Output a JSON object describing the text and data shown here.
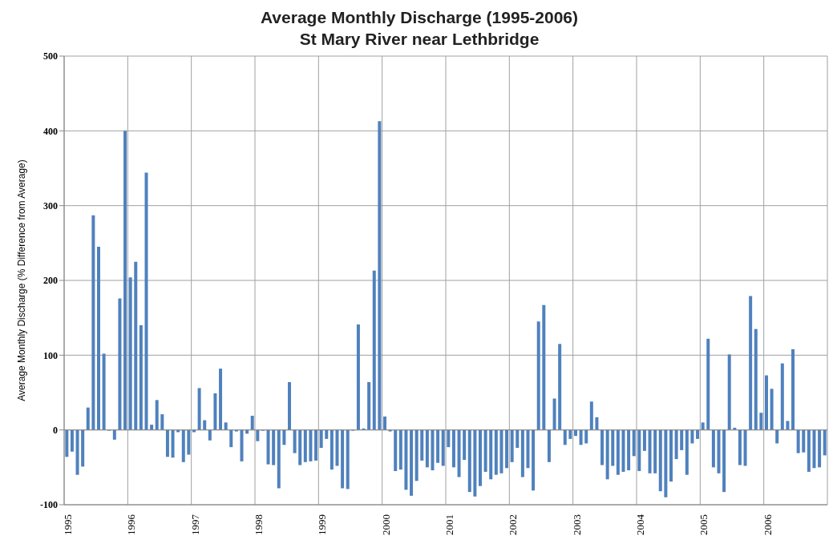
{
  "chart_data": {
    "type": "bar",
    "title": "Average Monthly Discharge (1995-2006)",
    "subtitle": "St Mary River near Lethbridge",
    "ylabel": "Average Monthly Discharge (% Difference from Average)",
    "categories": [
      "1995",
      null,
      null,
      null,
      null,
      null,
      null,
      null,
      null,
      null,
      null,
      null,
      "1996",
      null,
      null,
      null,
      null,
      null,
      null,
      null,
      null,
      null,
      null,
      null,
      "1997",
      null,
      null,
      null,
      null,
      null,
      null,
      null,
      null,
      null,
      null,
      null,
      "1998",
      null,
      null,
      null,
      null,
      null,
      null,
      null,
      null,
      null,
      null,
      null,
      "1999",
      null,
      null,
      null,
      null,
      null,
      null,
      null,
      null,
      null,
      null,
      null,
      "2000",
      null,
      null,
      null,
      null,
      null,
      null,
      null,
      null,
      null,
      null,
      null,
      "2001",
      null,
      null,
      null,
      null,
      null,
      null,
      null,
      null,
      null,
      null,
      null,
      "2002",
      null,
      null,
      null,
      null,
      null,
      null,
      null,
      null,
      null,
      null,
      null,
      "2003",
      null,
      null,
      null,
      null,
      null,
      null,
      null,
      null,
      null,
      null,
      null,
      "2004",
      null,
      null,
      null,
      null,
      null,
      null,
      null,
      null,
      null,
      null,
      null,
      "2005",
      null,
      null,
      null,
      null,
      null,
      null,
      null,
      null,
      null,
      null,
      null,
      "2006",
      null,
      null,
      null,
      null,
      null,
      null,
      null,
      null,
      null,
      null,
      null
    ],
    "values": [
      -36,
      -29,
      -60,
      -49,
      30,
      287,
      245,
      102,
      -1,
      -13,
      176,
      400,
      204,
      225,
      140,
      344,
      7,
      40,
      21,
      -36,
      -37,
      -3,
      -43,
      -33,
      -3,
      56,
      13,
      -14,
      49,
      82,
      10,
      -23,
      -2,
      -42,
      -5,
      19,
      -15,
      -1,
      -46,
      -47,
      -78,
      -20,
      64,
      -31,
      -47,
      -43,
      -42,
      -41,
      -24,
      -12,
      -53,
      -48,
      -78,
      -79,
      -1,
      141,
      2,
      64,
      213,
      413,
      18,
      -2,
      -55,
      -53,
      -80,
      -88,
      -68,
      -41,
      -50,
      -54,
      -44,
      -48,
      -23,
      -50,
      -63,
      -40,
      -83,
      -89,
      -75,
      -56,
      -66,
      -60,
      -58,
      -51,
      -43,
      -24,
      -63,
      -51,
      -81,
      145,
      167,
      -43,
      42,
      115,
      -20,
      -12,
      -8,
      -20,
      -18,
      38,
      17,
      -47,
      -66,
      -48,
      -60,
      -56,
      -54,
      -35,
      -55,
      -28,
      -58,
      -58,
      -82,
      -90,
      -69,
      -39,
      -27,
      -60,
      -18,
      -12,
      10,
      122,
      -50,
      -58,
      -83,
      101,
      3,
      -47,
      -48,
      179,
      135,
      23,
      73,
      55,
      -18,
      89,
      12,
      108,
      -31,
      -30,
      -56,
      -51,
      -50,
      -34
    ],
    "color": "#4f81bd",
    "ylim": [
      -100,
      500
    ],
    "yticks": [
      -100,
      0,
      100,
      200,
      300,
      400,
      500
    ],
    "grid": true
  }
}
